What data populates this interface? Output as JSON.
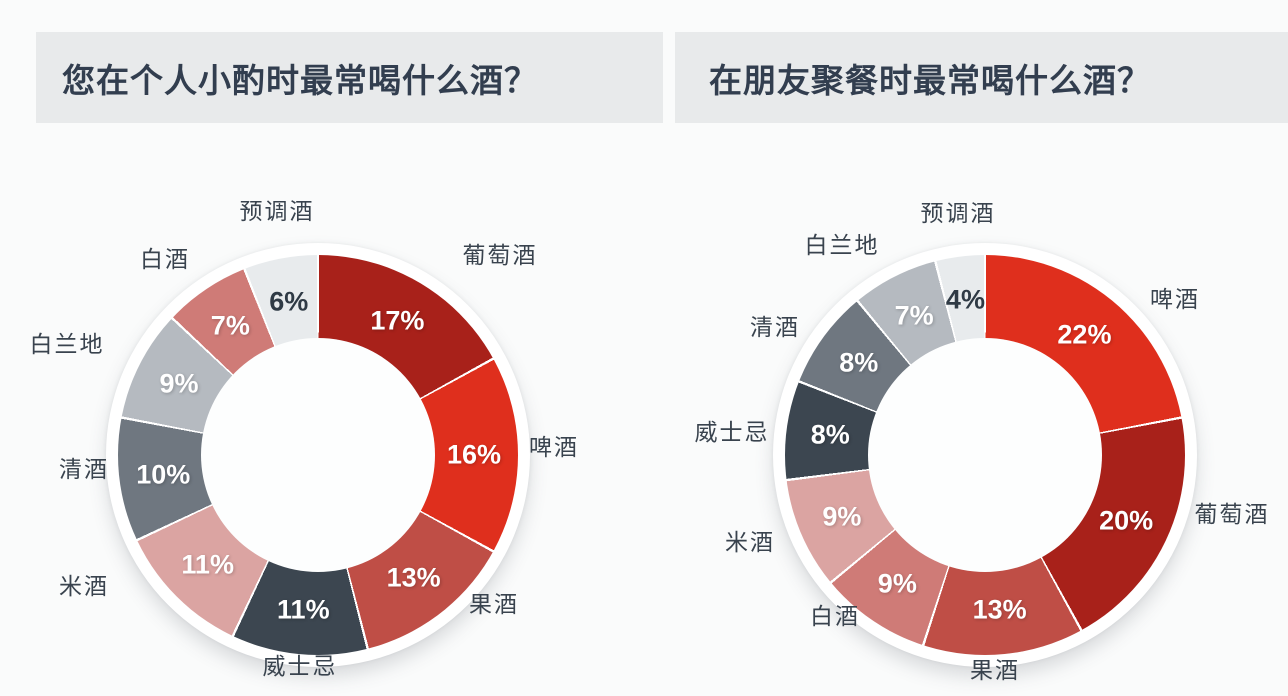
{
  "page": {
    "background": "#fafbfb",
    "band_color": "#e8eaeb",
    "title_color": "#323e4f",
    "label_color": "#39434e"
  },
  "chart_data": [
    {
      "type": "pie",
      "subtype": "donut",
      "title": "您在个人小酌时最常喝什么酒？",
      "unit": "%",
      "order": "clockwise-from-top",
      "legend_position": "around",
      "segments": [
        {
          "label": "葡萄酒",
          "value": 17,
          "color": "#a8211a",
          "value_color": "#ffffff"
        },
        {
          "label": "啤酒",
          "value": 16,
          "color": "#df2f1d",
          "value_color": "#ffffff"
        },
        {
          "label": "果酒",
          "value": 13,
          "color": "#bf4e46",
          "value_color": "#ffffff"
        },
        {
          "label": "威士忌",
          "value": 11,
          "color": "#3c4650",
          "value_color": "#ffffff"
        },
        {
          "label": "米酒",
          "value": 11,
          "color": "#dba4a2",
          "value_color": "#ffffff"
        },
        {
          "label": "清酒",
          "value": 10,
          "color": "#6f7780",
          "value_color": "#ffffff"
        },
        {
          "label": "白兰地",
          "value": 9,
          "color": "#b5bac0",
          "value_color": "#ffffff"
        },
        {
          "label": "白酒",
          "value": 7,
          "color": "#cf7b77",
          "value_color": "#ffffff"
        },
        {
          "label": "预调酒",
          "value": 6,
          "color": "#e8ebed",
          "value_color": "#2f3a45"
        }
      ]
    },
    {
      "type": "pie",
      "subtype": "donut",
      "title": "在朋友聚餐时最常喝什么酒？",
      "unit": "%",
      "order": "clockwise-from-top",
      "legend_position": "around",
      "segments": [
        {
          "label": "啤酒",
          "value": 22,
          "color": "#df2f1d",
          "value_color": "#ffffff"
        },
        {
          "label": "葡萄酒",
          "value": 20,
          "color": "#a8211a",
          "value_color": "#ffffff"
        },
        {
          "label": "果酒",
          "value": 13,
          "color": "#bf4e46",
          "value_color": "#ffffff"
        },
        {
          "label": "白酒",
          "value": 9,
          "color": "#cf7b77",
          "value_color": "#ffffff"
        },
        {
          "label": "米酒",
          "value": 9,
          "color": "#dba4a2",
          "value_color": "#ffffff"
        },
        {
          "label": "威士忌",
          "value": 8,
          "color": "#3c4650",
          "value_color": "#ffffff"
        },
        {
          "label": "清酒",
          "value": 8,
          "color": "#6f7780",
          "value_color": "#ffffff"
        },
        {
          "label": "白兰地",
          "value": 7,
          "color": "#b5bac0",
          "value_color": "#ffffff"
        },
        {
          "label": "预调酒",
          "value": 4,
          "color": "#e8ebed",
          "value_color": "#2f3a45"
        }
      ]
    }
  ]
}
